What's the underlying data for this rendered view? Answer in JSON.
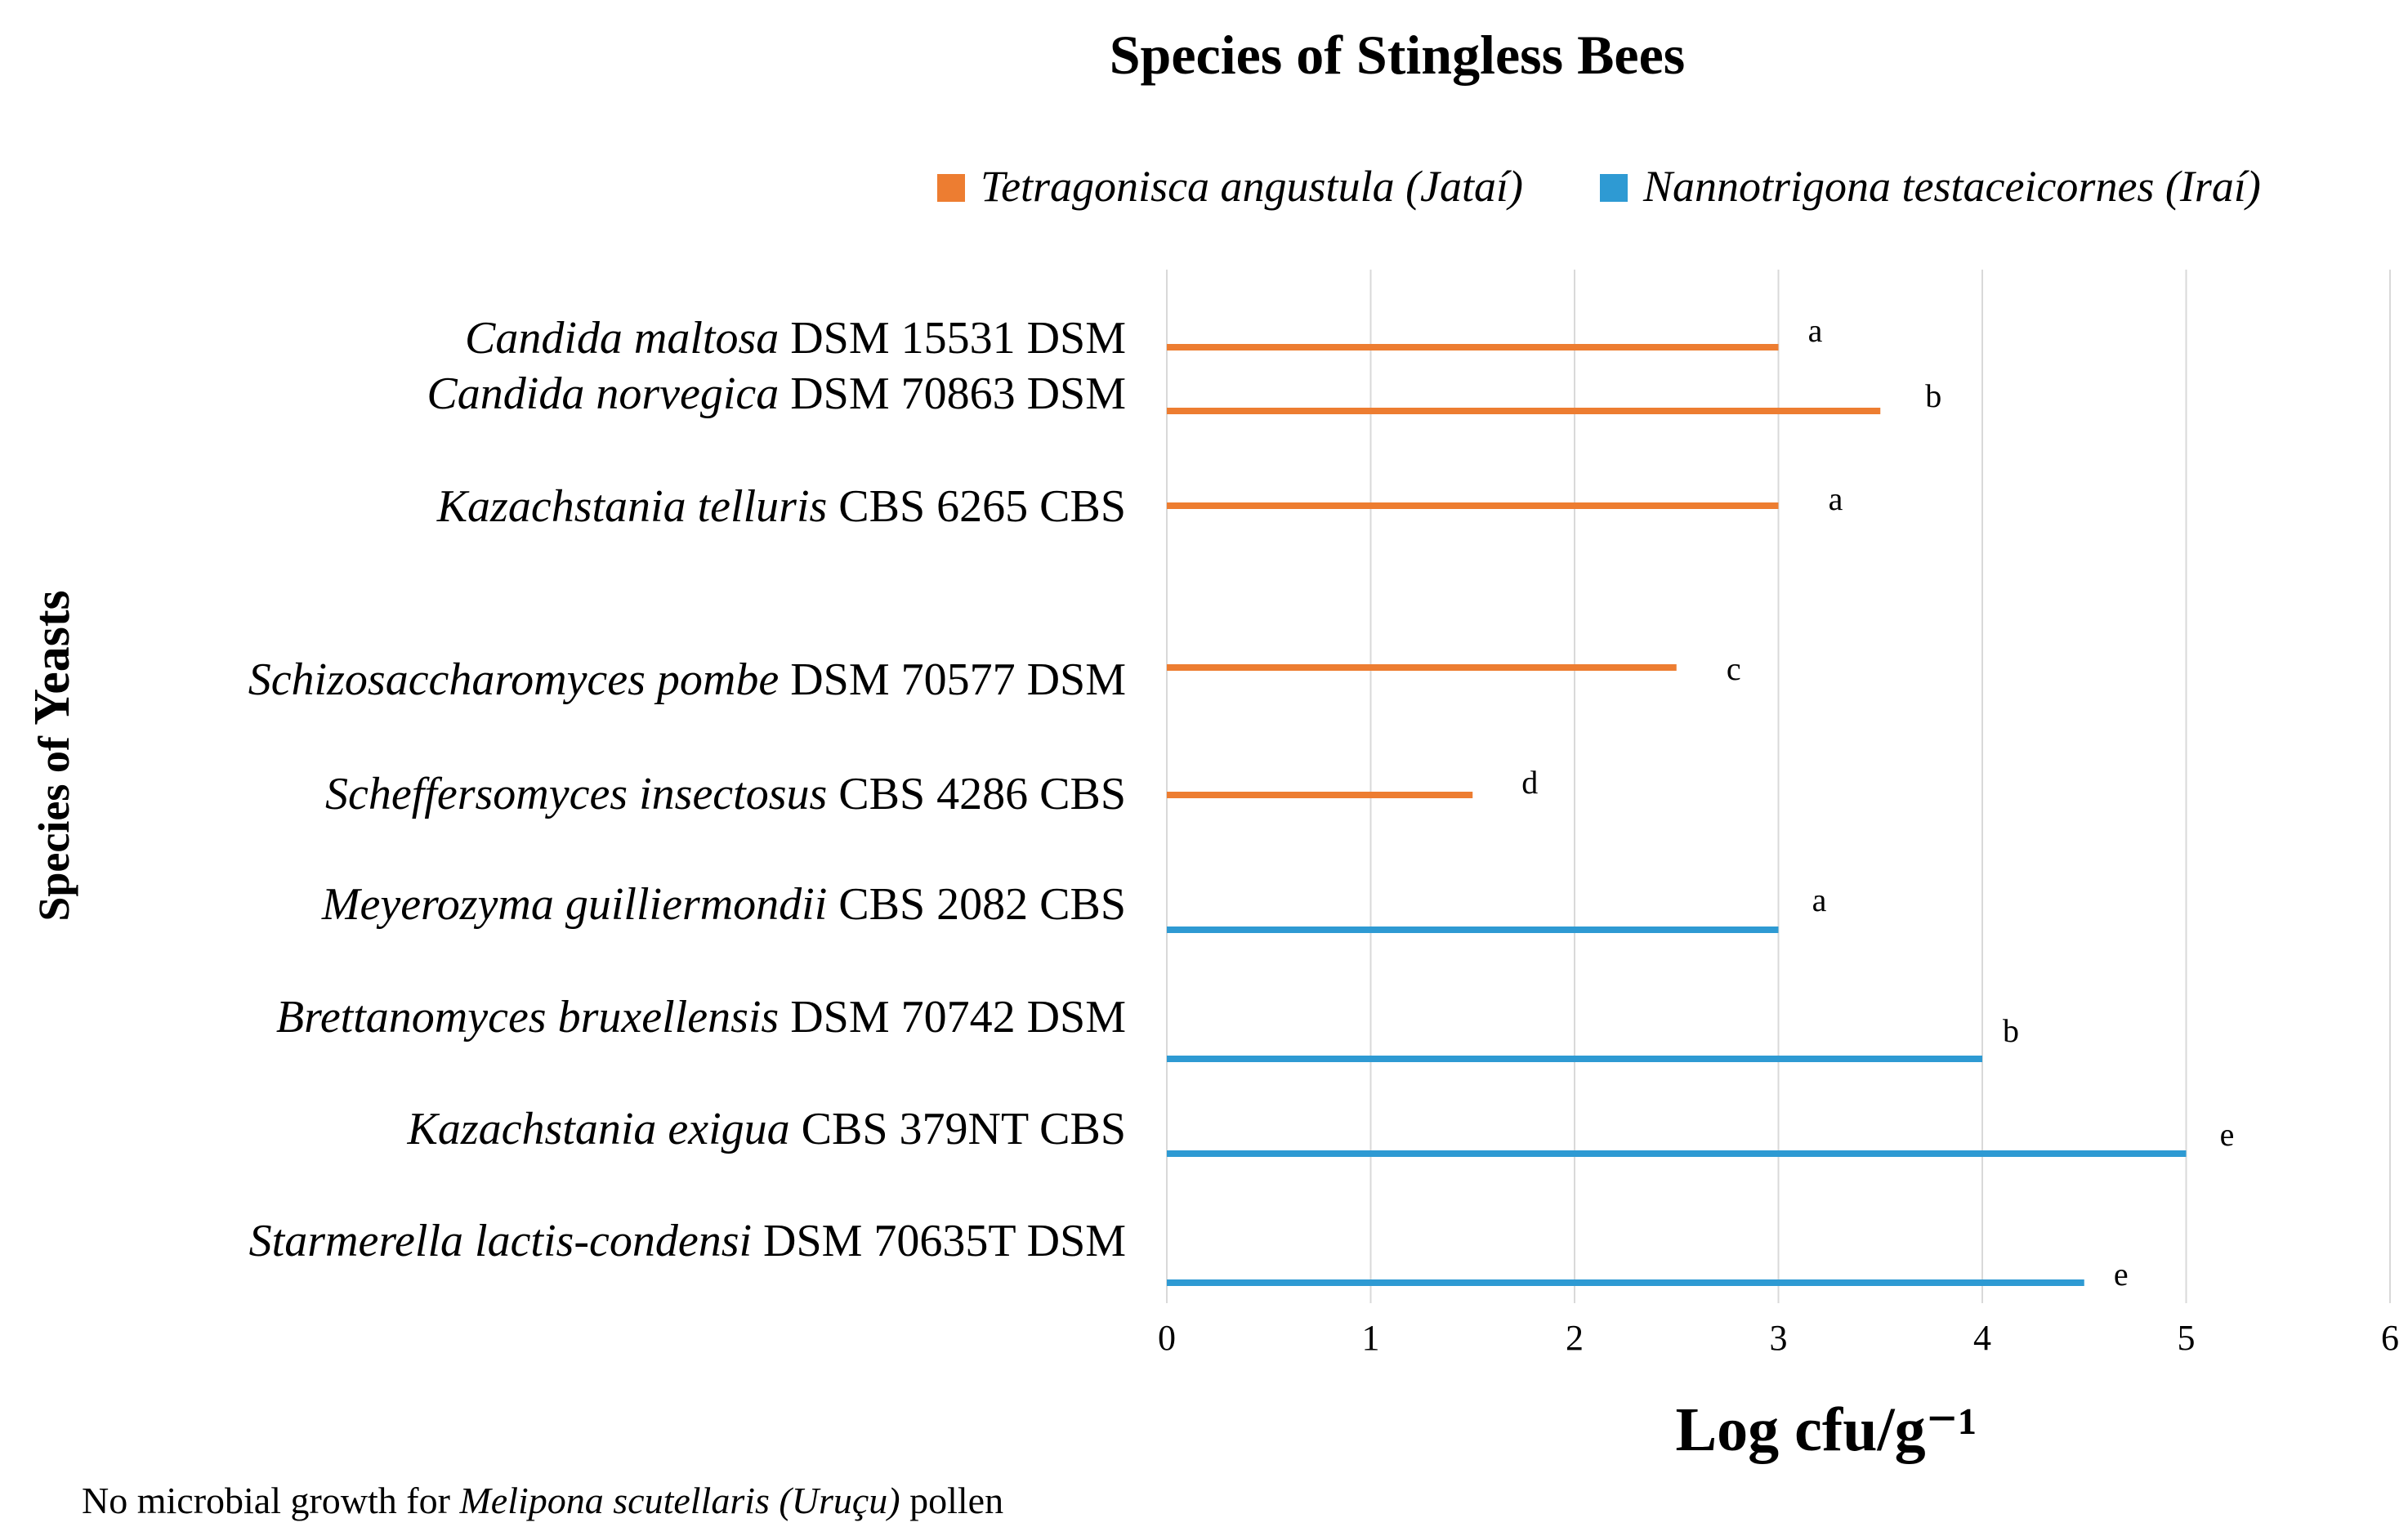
{
  "chart_data": {
    "type": "bar",
    "orientation": "horizontal",
    "title": "Species of Stingless Bees",
    "xlabel": "Log cfu/g⁻¹",
    "ylabel": {
      "prefix": "Species of ",
      "emphasis": "Yeasts"
    },
    "xlim": [
      0,
      6
    ],
    "xticks": [
      "0",
      "1",
      "2",
      "3",
      "4",
      "5",
      "6"
    ],
    "grid": "vertical",
    "legend": {
      "position": "top-right",
      "entries": [
        {
          "name": "Tetragonisca angustula (Jataí)",
          "color": "#ED7D31"
        },
        {
          "name": "Nannotrigona testaceicornes (Iraí)",
          "color": "#2E9AD3"
        }
      ]
    },
    "bars": [
      {
        "species": "Candida maltosa",
        "strain": " DSM 15531 DSM",
        "value": 3.0,
        "series": 0,
        "letter": "a"
      },
      {
        "species": "Candida norvegica",
        "strain": " DSM 70863 DSM",
        "value": 3.5,
        "series": 0,
        "letter": "b"
      },
      {
        "species": "Kazachstania telluris",
        "strain": " CBS 6265 CBS",
        "value": 3.0,
        "series": 0,
        "letter": "a"
      },
      {
        "species": "Schizosaccharomyces pombe",
        "strain": " DSM 70577 DSM",
        "value": 2.5,
        "series": 0,
        "letter": "c"
      },
      {
        "species": "Scheffersomyces insectosus",
        "strain": " CBS 4286 CBS",
        "value": 1.5,
        "series": 0,
        "letter": "d"
      },
      {
        "species": "Meyerozyma guilliermondii",
        "strain": " CBS 2082 CBS",
        "value": 3.0,
        "series": 1,
        "letter": "a"
      },
      {
        "species": "Brettanomyces bruxellensis",
        "strain": " DSM 70742 DSM",
        "value": 4.0,
        "series": 1,
        "letter": "b"
      },
      {
        "species": "Kazachstania exigua",
        "strain": " CBS 379NT CBS",
        "value": 5.0,
        "series": 1,
        "letter": "e"
      },
      {
        "species": "Starmerella lactis-condensi",
        "strain": " DSM 70635T DSM",
        "value": 4.5,
        "series": 1,
        "letter": "e"
      }
    ],
    "footnote": {
      "before": "No microbial growth for ",
      "italic": "Melipona scutellaris (Uruçu)",
      "after": " pollen"
    }
  }
}
